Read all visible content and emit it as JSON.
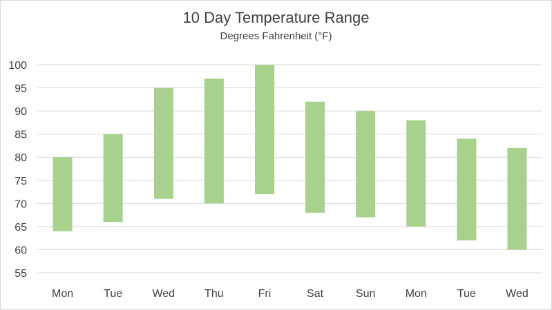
{
  "chart_data": {
    "type": "bar",
    "subtype": "floating-range",
    "title": "10 Day Temperature Range",
    "subtitle": "Degrees Fahrenheit (°F)",
    "xlabel": "",
    "ylabel": "",
    "categories": [
      "Mon",
      "Tue",
      "Wed",
      "Thu",
      "Fri",
      "Sat",
      "Sun",
      "Mon",
      "Tue",
      "Wed"
    ],
    "series": [
      {
        "low": [
          64,
          66,
          71,
          70,
          72,
          68,
          67,
          65,
          62,
          60
        ],
        "high": [
          80,
          85,
          95,
          97,
          100,
          92,
          90,
          88,
          84,
          82
        ]
      }
    ],
    "ylim": [
      55,
      100
    ],
    "yticks": [
      55,
      60,
      65,
      70,
      75,
      80,
      85,
      90,
      95,
      100
    ],
    "grid": true,
    "legend": "none",
    "colors": {
      "bar": "#a9d18e",
      "grid": "#d9d9d9",
      "text": "#404040"
    }
  }
}
